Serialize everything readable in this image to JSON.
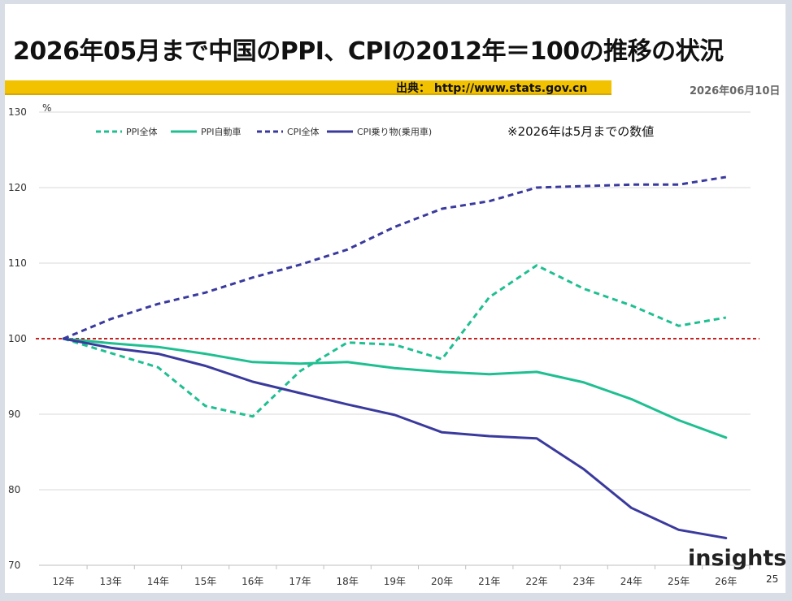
{
  "title": "2026年05月まで中国のPPI、CPIの2012年＝100の推移の状況",
  "source": "出典：  http://www.stats.gov.cn",
  "date": "2026年06月10日",
  "note": "※2026年は5月までの数値",
  "page_number": "25",
  "logo": "insights",
  "colors": {
    "ppi_all": "#1fbf91",
    "ppi_auto": "#1fbf91",
    "cpi_all": "#3a3a9e",
    "cpi_vehicle": "#3a3a9e",
    "reference": "#c00000",
    "source_bar": "#f2c100"
  },
  "chart_data": {
    "type": "line",
    "unit_label": "%",
    "categories": [
      "12年",
      "13年",
      "14年",
      "15年",
      "16年",
      "17年",
      "18年",
      "19年",
      "20年",
      "21年",
      "22年",
      "23年",
      "24年",
      "25年",
      "26年"
    ],
    "ylim": [
      70,
      130
    ],
    "yticks": [
      70,
      80,
      90,
      100,
      110,
      120,
      130
    ],
    "reference_line": 100,
    "grid": true,
    "legend_position": "top",
    "series": [
      {
        "name": "PPI全体",
        "style": "dashed",
        "values": [
          100,
          98.1,
          96.2,
          91.1,
          89.7,
          95.7,
          99.5,
          99.2,
          97.3,
          105.5,
          109.7,
          106.6,
          104.4,
          101.7,
          102.8
        ]
      },
      {
        "name": "PPI自動車",
        "style": "solid",
        "values": [
          100,
          99.4,
          98.9,
          98.0,
          96.9,
          96.7,
          96.9,
          96.1,
          95.6,
          95.3,
          95.6,
          94.2,
          92.0,
          89.2,
          86.9
        ]
      },
      {
        "name": "CPI全体",
        "style": "dashed",
        "values": [
          100,
          102.6,
          104.6,
          106.1,
          108.1,
          109.8,
          111.8,
          114.8,
          117.2,
          118.2,
          120.0,
          120.2,
          120.4,
          120.4,
          121.4
        ]
      },
      {
        "name": "CPI乗り物(乗用車)",
        "style": "solid",
        "values": [
          100,
          98.8,
          98.0,
          96.4,
          94.3,
          92.8,
          91.3,
          89.9,
          87.6,
          87.1,
          86.8,
          82.7,
          77.6,
          74.7,
          73.6
        ]
      }
    ]
  }
}
